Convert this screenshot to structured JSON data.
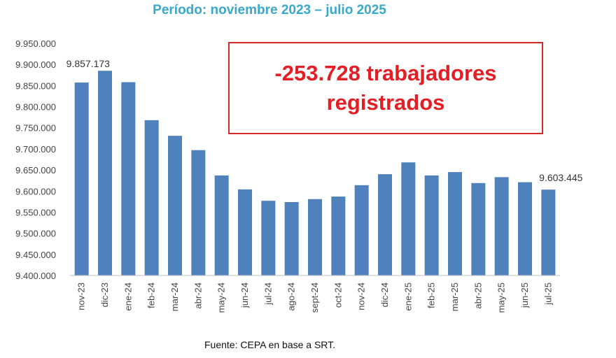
{
  "header": {
    "subtitle": "Período: noviembre 2023 – julio 2025"
  },
  "callout": {
    "text": "-253.728 trabajadores\nregistrados"
  },
  "source": "Fuente: CEPA en base a SRT.",
  "colors": {
    "bar": "#4f81bd",
    "callout_text": "#e31e24",
    "callout_border": "#d62a2a",
    "subtitle": "#3aa8c9"
  },
  "chart_data": {
    "type": "bar",
    "categories": [
      "nov-23",
      "dic-23",
      "ene-24",
      "feb-24",
      "mar-24",
      "abr-24",
      "may-24",
      "jun-24",
      "jul-24",
      "ago-24",
      "sept-24",
      "oct-24",
      "nov-24",
      "dic-24",
      "ene-25",
      "feb-25",
      "mar-25",
      "abr-25",
      "may-25",
      "jun-25",
      "jul-25"
    ],
    "values": [
      9857173,
      9885000,
      9858000,
      9768000,
      9731000,
      9697000,
      9637000,
      9604000,
      9577000,
      9574000,
      9581000,
      9587000,
      9614000,
      9640000,
      9668000,
      9637000,
      9645000,
      9619000,
      9633000,
      9621000,
      9603445
    ],
    "ylim": [
      9400000,
      9950000
    ],
    "yticks": [
      9400000,
      9450000,
      9500000,
      9550000,
      9600000,
      9650000,
      9700000,
      9750000,
      9800000,
      9850000,
      9900000,
      9950000
    ],
    "ytick_labels": [
      "9.400.000",
      "9.450.000",
      "9.500.000",
      "9.550.000",
      "9.600.000",
      "9.650.000",
      "9.700.000",
      "9.750.000",
      "9.800.000",
      "9.850.000",
      "9.900.000",
      "9.950.000"
    ],
    "data_labels": [
      {
        "index": 0,
        "text": "9.857.173"
      },
      {
        "index": 20,
        "text": "9.603.445"
      }
    ],
    "grid": false,
    "legend": "none"
  }
}
